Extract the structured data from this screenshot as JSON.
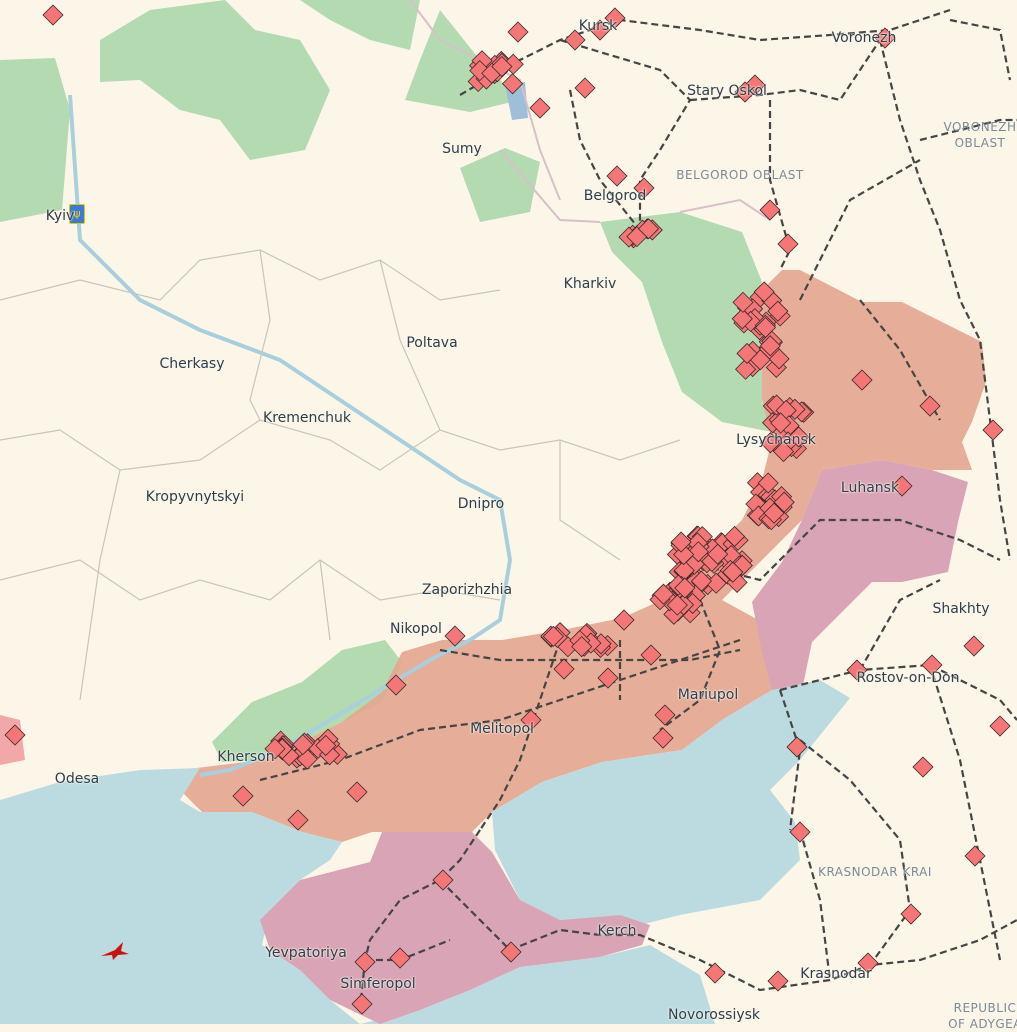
{
  "map": {
    "colors": {
      "land": "#fcf6e8",
      "water": "#bcdbe0",
      "occupied": "#e3a58f",
      "occupied_before_2022": "#d9a4b5",
      "liberated": "#b3dab0",
      "marker": "#f47676",
      "railway": "#454545"
    },
    "cities": {
      "kyiv": "Kyiv",
      "kursk": "Kursk",
      "voronezh": "Voronezh",
      "stary_oskol": "Stary Oskol",
      "sumy": "Sumy",
      "belgorod": "Belgorod",
      "kharkiv": "Kharkiv",
      "poltava": "Poltava",
      "cherkasy": "Cherkasy",
      "kremenchuk": "Kremenchuk",
      "lysychansk": "Lysychansk",
      "luhansk": "Luhansk",
      "kropyvnytskyi": "Kropyvnytskyi",
      "dnipro": "Dnipro",
      "zaporizhzhia": "Zaporizhzhia",
      "shakhty": "Shakhty",
      "nikopol": "Nikopol",
      "rostov": "Rostov-on-Don",
      "mariupol": "Mariupol",
      "melitopol": "Melitopol",
      "kherson": "Kherson",
      "odesa": "Odesa",
      "kerch": "Kerch",
      "yevpatoriya": "Yevpatoriya",
      "simferopol": "Simferopol",
      "krasnodar": "Krasnodar",
      "novorossiysk": "Novorossiysk"
    },
    "regions": {
      "belgorod_oblast": "BELGOROD OBLAST",
      "voronezh_oblast_1": "VORONEZH",
      "voronezh_oblast_2": "OBLAST",
      "krasnodar_krai": "KRASNODAR KRAI",
      "adygea_1": "REPUBLIC",
      "adygea_2": "OF ADYGEA"
    },
    "icons": {
      "capital": "ukraine-trident-icon",
      "event": "event-diamond-icon",
      "aircraft": "aircraft-icon"
    }
  }
}
